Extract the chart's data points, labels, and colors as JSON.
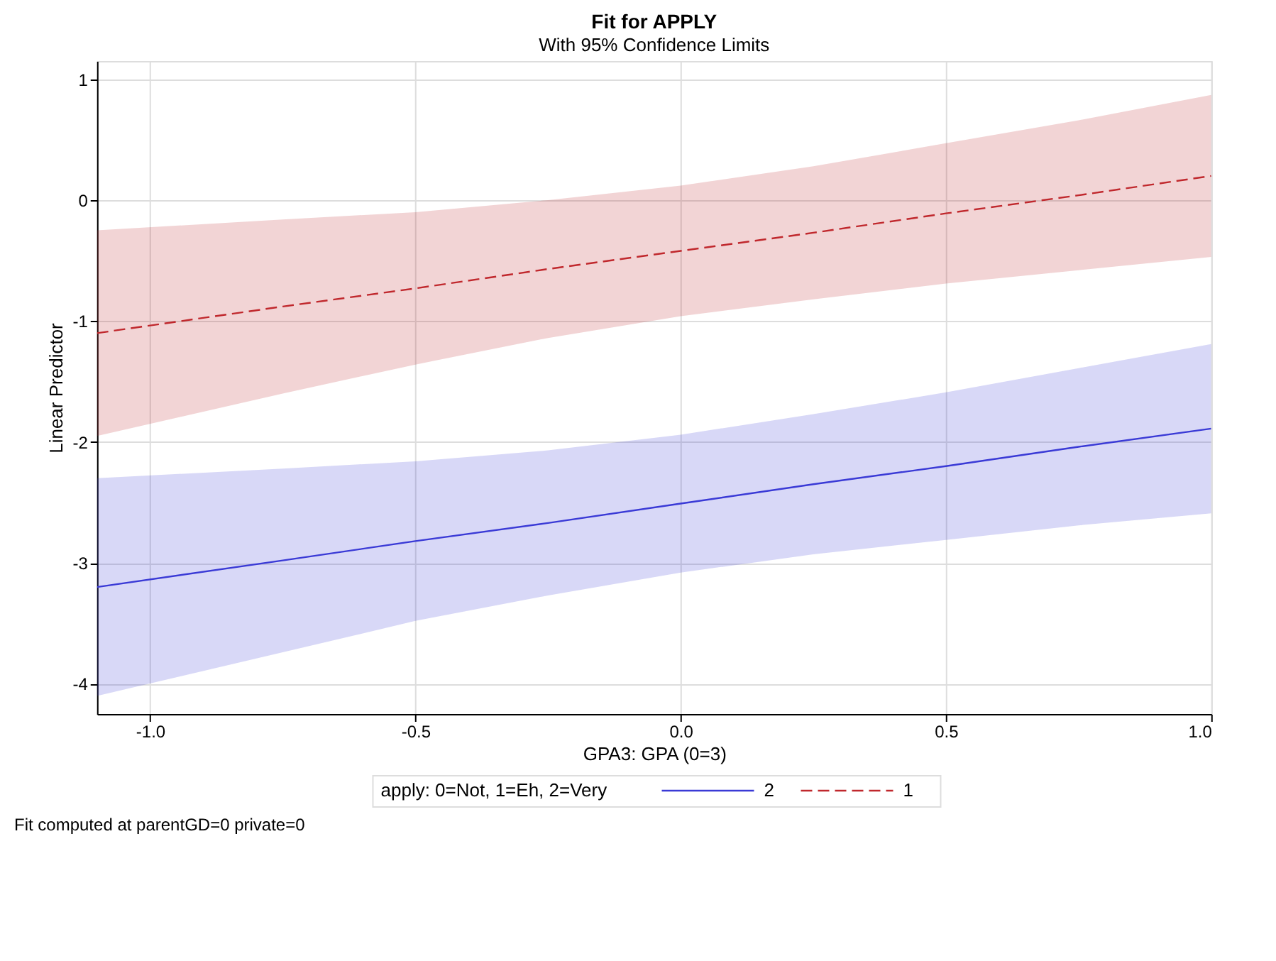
{
  "chart_data": {
    "type": "line",
    "title": "Fit for APPLY",
    "subtitle": "With 95% Confidence Limits",
    "xlabel": "GPA3: GPA (0=3)",
    "ylabel": "Linear Predictor",
    "legend_title": "apply: 0=Not, 1=Eh, 2=Very",
    "x": [
      -1.1,
      -0.75,
      -0.5,
      -0.25,
      0,
      0.25,
      0.5,
      0.75,
      1.0
    ],
    "series": [
      {
        "name": "2",
        "color": "#3a3ad6",
        "line_style": "solid",
        "values": [
          -3.2,
          -2.98,
          -2.82,
          -2.67,
          -2.51,
          -2.35,
          -2.2,
          -2.04,
          -1.89
        ],
        "lower": [
          -4.1,
          -3.74,
          -3.48,
          -3.27,
          -3.08,
          -2.93,
          -2.81,
          -2.69,
          -2.59
        ],
        "upper": [
          -2.3,
          -2.22,
          -2.16,
          -2.07,
          -1.94,
          -1.77,
          -1.59,
          -1.39,
          -1.19
        ]
      },
      {
        "name": "1",
        "color": "#c0282d",
        "line_style": "dashed",
        "values": [
          -1.1,
          -0.88,
          -0.73,
          -0.57,
          -0.42,
          -0.27,
          -0.11,
          0.04,
          0.2
        ],
        "lower": [
          -1.95,
          -1.6,
          -1.36,
          -1.14,
          -0.96,
          -0.82,
          -0.69,
          -0.58,
          -0.47
        ],
        "upper": [
          -0.25,
          -0.16,
          -0.1,
          0.0,
          0.12,
          0.28,
          0.47,
          0.66,
          0.87
        ]
      }
    ],
    "xlim": [
      -1.1,
      1.0
    ],
    "ylim": [
      -4.25,
      1.15
    ],
    "xticks": [
      {
        "value": -1.0,
        "label": "-1.0"
      },
      -0.5,
      {
        "value": 0,
        "label": "0.0"
      },
      0.5,
      {
        "value": 1.0,
        "label": "1.0"
      }
    ],
    "yticks": [
      -4,
      -3,
      -2,
      -1,
      0,
      1
    ],
    "grid": true,
    "legend": "bottom",
    "annotations": [
      "Fit computed at parentGD=0 private=0"
    ]
  }
}
